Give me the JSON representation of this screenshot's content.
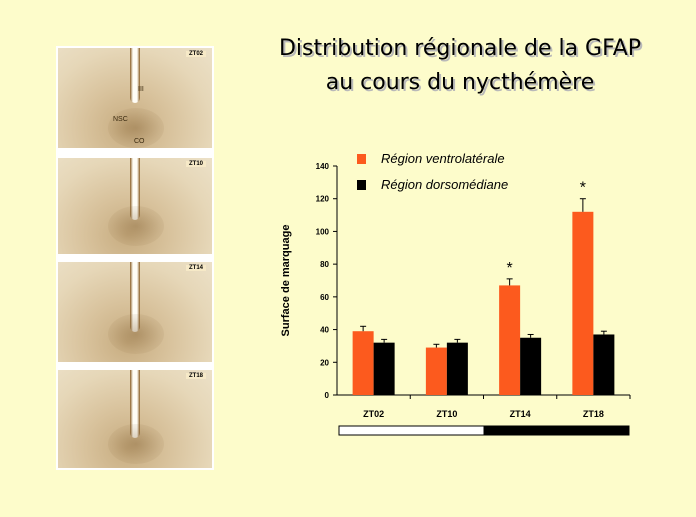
{
  "title": {
    "line1": "Distribution régionale de la GFAP",
    "line2": "au cours du nycthémère"
  },
  "histology": {
    "panels": [
      {
        "label": "ZT02",
        "annotations": [
          "III",
          "NSC",
          "CO"
        ]
      },
      {
        "label": "ZT10",
        "annotations": []
      },
      {
        "label": "ZT14",
        "annotations": []
      },
      {
        "label": "ZT18",
        "annotations": []
      }
    ]
  },
  "colors": {
    "ventrolateral": "#fc5a1e",
    "dorsomedian": "#000000",
    "background": "#fdfccb"
  },
  "chart_data": {
    "type": "bar",
    "categories": [
      "ZT02",
      "ZT10",
      "ZT14",
      "ZT18"
    ],
    "series": [
      {
        "name": "Région ventrolatérale",
        "values": [
          39,
          29,
          67,
          112
        ],
        "errors": [
          3,
          2,
          4,
          8
        ]
      },
      {
        "name": "Région dorsomédiane",
        "values": [
          32,
          32,
          35,
          37
        ],
        "errors": [
          2,
          2,
          2,
          2
        ]
      }
    ],
    "significance": [
      "",
      "",
      "*",
      "*"
    ],
    "ylabel": "Surface de marquage",
    "xlabel": "",
    "ylim": [
      0,
      140
    ],
    "yticks": [
      0,
      20,
      40,
      60,
      80,
      100,
      120,
      140
    ],
    "legend_position": "top",
    "light_dark_bar": {
      "light_fraction": 0.5
    }
  }
}
